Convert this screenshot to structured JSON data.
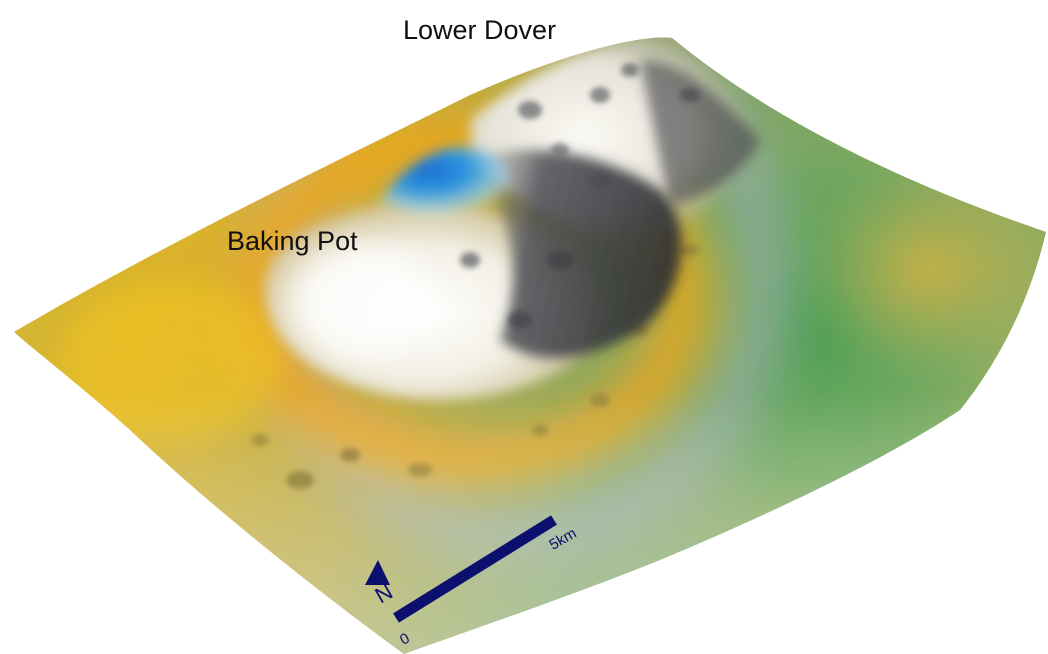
{
  "labels": {
    "lower_dover": "Lower Dover",
    "baking_pot": "Baking Pot"
  },
  "scale_bar": {
    "start_label": "0",
    "end_label": "5km",
    "color": "#0b0f6e"
  },
  "north_arrow": {
    "label": "N",
    "color": "#0b0f6e"
  },
  "surface_colors": {
    "low_green": "#5a9e5a",
    "mid_yellow": "#e2b01c",
    "orange_ring": "#f0a010",
    "high_white": "#f6f4ec",
    "shadow_gray": "#3f4147",
    "peak_blue": "#1e7fd6"
  }
}
